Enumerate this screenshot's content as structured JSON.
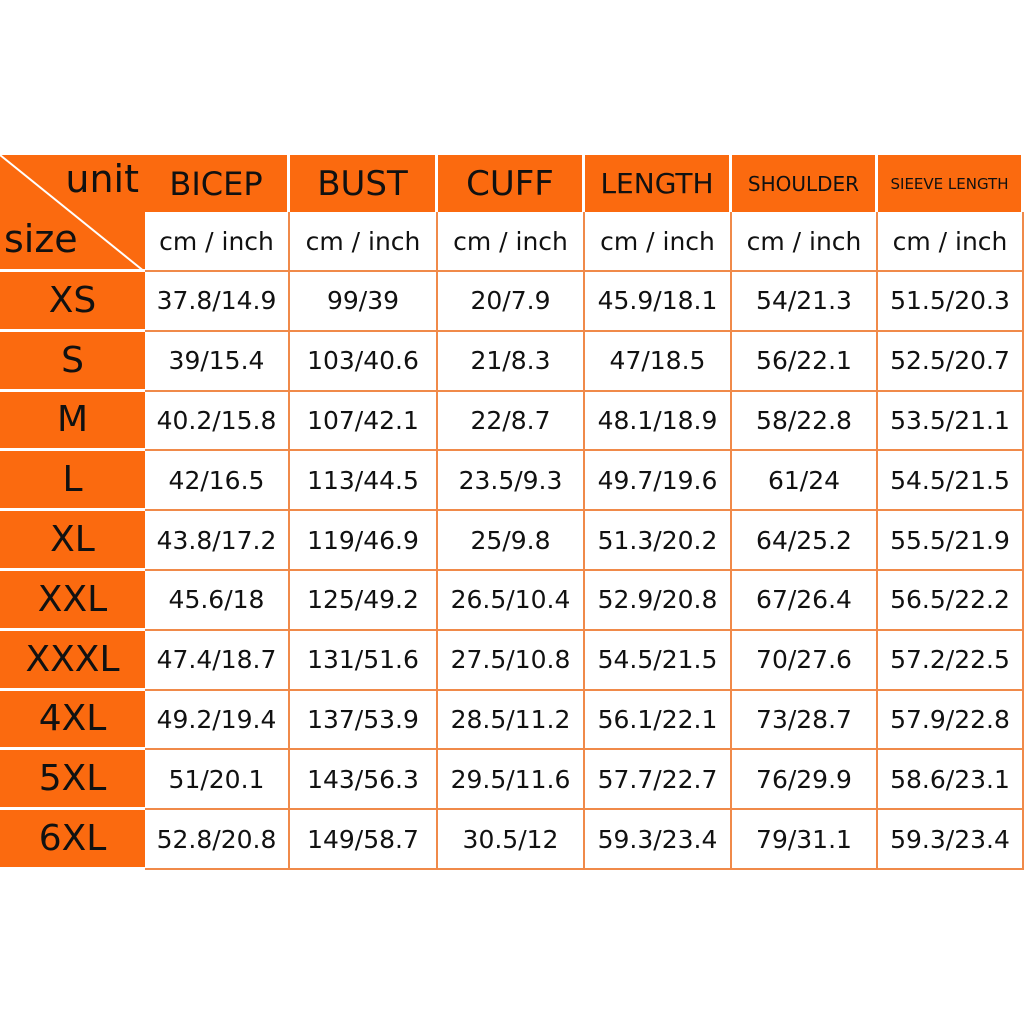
{
  "corner": {
    "unit": "unit",
    "size": "size"
  },
  "headers": [
    "BICEP",
    "BUST",
    "CUFF",
    "LENGTH",
    "SHOULDER",
    "SIEEVE LENGTH"
  ],
  "units": [
    "cm / inch",
    "cm / inch",
    "cm / inch",
    "cm / inch",
    "cm / inch",
    "cm / inch"
  ],
  "rows": [
    {
      "size": "XS",
      "cells": [
        "37.8/14.9",
        "99/39",
        "20/7.9",
        "45.9/18.1",
        "54/21.3",
        "51.5/20.3"
      ]
    },
    {
      "size": "S",
      "cells": [
        "39/15.4",
        "103/40.6",
        "21/8.3",
        "47/18.5",
        "56/22.1",
        "52.5/20.7"
      ]
    },
    {
      "size": "M",
      "cells": [
        "40.2/15.8",
        "107/42.1",
        "22/8.7",
        "48.1/18.9",
        "58/22.8",
        "53.5/21.1"
      ]
    },
    {
      "size": "L",
      "cells": [
        "42/16.5",
        "113/44.5",
        "23.5/9.3",
        "49.7/19.6",
        "61/24",
        "54.5/21.5"
      ]
    },
    {
      "size": "XL",
      "cells": [
        "43.8/17.2",
        "119/46.9",
        "25/9.8",
        "51.3/20.2",
        "64/25.2",
        "55.5/21.9"
      ]
    },
    {
      "size": "XXL",
      "cells": [
        "45.6/18",
        "125/49.2",
        "26.5/10.4",
        "52.9/20.8",
        "67/26.4",
        "56.5/22.2"
      ]
    },
    {
      "size": "XXXL",
      "cells": [
        "47.4/18.7",
        "131/51.6",
        "27.5/10.8",
        "54.5/21.5",
        "70/27.6",
        "57.2/22.5"
      ]
    },
    {
      "size": "4XL",
      "cells": [
        "49.2/19.4",
        "137/53.9",
        "28.5/11.2",
        "56.1/22.1",
        "73/28.7",
        "57.9/22.8"
      ]
    },
    {
      "size": "5XL",
      "cells": [
        "51/20.1",
        "143/56.3",
        "29.5/11.6",
        "57.7/22.7",
        "76/29.9",
        "58.6/23.1"
      ]
    },
    {
      "size": "6XL",
      "cells": [
        "52.8/20.8",
        "149/58.7",
        "30.5/12",
        "59.3/23.4",
        "79/31.1",
        "59.3/23.4"
      ]
    }
  ]
}
